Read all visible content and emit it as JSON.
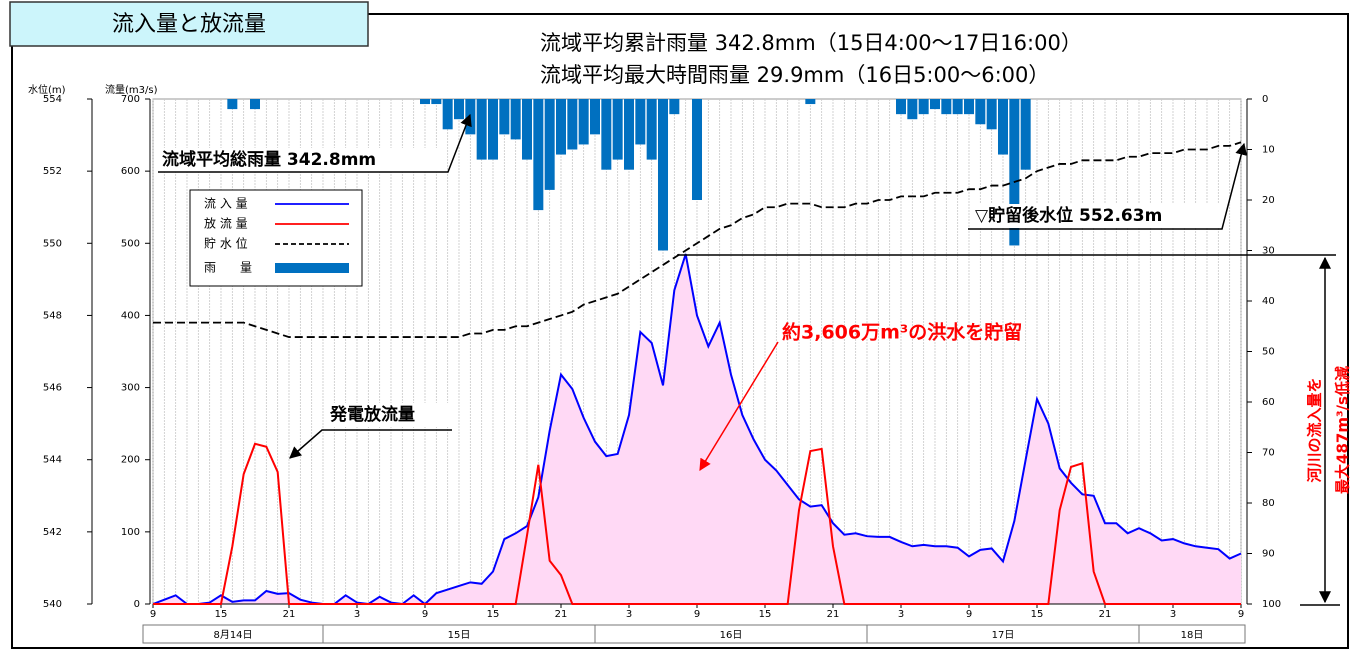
{
  "chart_data": {
    "type": "combo",
    "title": "流入量と放流量",
    "subtitle_lines": [
      "流域平均累計雨量  342.8mm（15日4:00〜17日16:00）",
      "流域平均最大時間雨量  29.9mm（16日5:00〜6:00）"
    ],
    "level_axis_label": "水位(m)",
    "y_axis_label": "流量(m3/s)",
    "annotations": [
      "流域平均総雨量  342.8mm",
      "▽貯留後水位  552.63m",
      "発電放流量",
      "約3,606万m³の洪水を貯留",
      "河川の流入量を",
      "最大487m³/s低減"
    ],
    "x": [
      0,
      1,
      2,
      3,
      4,
      5,
      6,
      7,
      8,
      9,
      10,
      11,
      12,
      13,
      14,
      15,
      16,
      17,
      18,
      19,
      20,
      21,
      22,
      23,
      24,
      25,
      26,
      27,
      28,
      29,
      30,
      31,
      32,
      33,
      34,
      35,
      36,
      37,
      38,
      39,
      40,
      41,
      42,
      43,
      44,
      45,
      46,
      47,
      48,
      49,
      50,
      51,
      52,
      53,
      54,
      55,
      56,
      57,
      58,
      59,
      60,
      61,
      62,
      63,
      64,
      65,
      66,
      67,
      68,
      69,
      70,
      71,
      72,
      73,
      74,
      75,
      76,
      77,
      78,
      79,
      80,
      81,
      82,
      83,
      84,
      85,
      86,
      87,
      88,
      89,
      90,
      91,
      92,
      93,
      94,
      95,
      96
    ],
    "xlim": [
      0,
      96
    ],
    "xticks": [
      {
        "value": 0,
        "label": "9"
      },
      {
        "value": 6,
        "label": "15"
      },
      {
        "value": 12,
        "label": "21"
      },
      {
        "value": 18,
        "label": "3"
      },
      {
        "value": 24,
        "label": "9"
      },
      {
        "value": 30,
        "label": "15"
      },
      {
        "value": 36,
        "label": "21"
      },
      {
        "value": 42,
        "label": "3"
      },
      {
        "value": 48,
        "label": "9"
      },
      {
        "value": 54,
        "label": "15"
      },
      {
        "value": 60,
        "label": "21"
      },
      {
        "value": 66,
        "label": "3"
      },
      {
        "value": 72,
        "label": "9"
      },
      {
        "value": 78,
        "label": "15"
      },
      {
        "value": 84,
        "label": "21"
      },
      {
        "value": 90,
        "label": "3"
      },
      {
        "value": 96,
        "label": "9"
      }
    ],
    "date_labels": [
      "8月14日",
      "15日",
      "16日",
      "17日",
      "18日"
    ],
    "date_dividers": [
      15,
      39,
      63,
      87
    ],
    "ylim": [
      0,
      700
    ],
    "yticks": [
      0,
      100,
      200,
      300,
      400,
      500,
      600,
      700
    ],
    "level_lim": [
      540,
      554
    ],
    "level_ticks": [
      540,
      542,
      544,
      546,
      548,
      550,
      552,
      554
    ],
    "y2lim": [
      0,
      100
    ],
    "y2ticks": [
      0,
      10,
      20,
      30,
      40,
      50,
      60,
      70,
      80,
      90,
      100
    ],
    "y2_inverted": true,
    "series": [
      {
        "name": "流 入 量",
        "color": "#0000ff",
        "fill": "#ffd9f5",
        "kind": "line",
        "axis": "y",
        "values": [
          0,
          6,
          12,
          0,
          0,
          2,
          12,
          3,
          5,
          5,
          18,
          14,
          15,
          6,
          2,
          0,
          0,
          12,
          2,
          0,
          10,
          2,
          0,
          12,
          0,
          15,
          20,
          25,
          30,
          28,
          45,
          90,
          98,
          108,
          148,
          240,
          318,
          298,
          258,
          225,
          205,
          208,
          262,
          377,
          362,
          303,
          435,
          485,
          400,
          357,
          390,
          318,
          262,
          228,
          200,
          185,
          165,
          145,
          135,
          137,
          112,
          96,
          98,
          94,
          93,
          93,
          86,
          80,
          82,
          80,
          80,
          78,
          66,
          75,
          77,
          59,
          115,
          200,
          284,
          250,
          188,
          168,
          152,
          150,
          112,
          112,
          98,
          105,
          98,
          88,
          90,
          84,
          80,
          78,
          76,
          63,
          70
        ]
      },
      {
        "name": "放 流 量",
        "color": "#ff0000",
        "kind": "line",
        "axis": "y",
        "values": [
          0,
          0,
          0,
          0,
          0,
          0,
          0,
          80,
          180,
          222,
          218,
          183,
          0,
          0,
          0,
          0,
          0,
          0,
          0,
          0,
          0,
          0,
          0,
          0,
          0,
          0,
          0,
          0,
          0,
          0,
          0,
          0,
          0,
          95,
          193,
          60,
          40,
          0,
          0,
          0,
          0,
          0,
          0,
          0,
          0,
          0,
          0,
          0,
          0,
          0,
          0,
          0,
          0,
          0,
          0,
          0,
          0,
          130,
          212,
          215,
          80,
          0,
          0,
          0,
          0,
          0,
          0,
          0,
          0,
          0,
          0,
          0,
          0,
          0,
          0,
          0,
          0,
          0,
          0,
          0,
          130,
          190,
          195,
          45,
          0,
          0,
          0,
          0,
          0,
          0,
          0,
          0,
          0,
          0,
          0,
          0,
          0
        ]
      },
      {
        "name": "貯 水 位",
        "color": "#000000",
        "kind": "dashed",
        "axis": "level",
        "values": [
          547.8,
          547.8,
          547.8,
          547.8,
          547.8,
          547.8,
          547.8,
          547.8,
          547.8,
          547.7,
          547.6,
          547.5,
          547.4,
          547.4,
          547.4,
          547.4,
          547.4,
          547.4,
          547.4,
          547.4,
          547.4,
          547.4,
          547.4,
          547.4,
          547.4,
          547.4,
          547.4,
          547.4,
          547.5,
          547.5,
          547.6,
          547.6,
          547.7,
          547.7,
          547.8,
          547.9,
          548.0,
          548.1,
          548.3,
          548.4,
          548.5,
          548.6,
          548.8,
          549.0,
          549.2,
          549.4,
          549.6,
          549.8,
          550.0,
          550.2,
          550.4,
          550.5,
          550.7,
          550.8,
          551.0,
          551.0,
          551.1,
          551.1,
          551.1,
          551.0,
          551.0,
          551.0,
          551.1,
          551.1,
          551.2,
          551.2,
          551.3,
          551.3,
          551.3,
          551.4,
          551.4,
          551.4,
          551.5,
          551.5,
          551.6,
          551.6,
          551.7,
          551.8,
          552.0,
          552.1,
          552.2,
          552.2,
          552.3,
          552.3,
          552.3,
          552.3,
          552.4,
          552.4,
          552.5,
          552.5,
          552.5,
          552.6,
          552.6,
          552.6,
          552.7,
          552.7,
          552.8
        ]
      },
      {
        "name": "雨　　量",
        "color": "#0070c0",
        "kind": "bar",
        "axis": "y2",
        "values": [
          0,
          0,
          0,
          0,
          0,
          0,
          0,
          2,
          0,
          2,
          0,
          0,
          0,
          0,
          0,
          0,
          0,
          0,
          0,
          0,
          0,
          0,
          0,
          0,
          1,
          1,
          6,
          4,
          7,
          12,
          12,
          7,
          8,
          12,
          22,
          18,
          11,
          10,
          9,
          7,
          14,
          12,
          14,
          9,
          12,
          30,
          3,
          0,
          20,
          0,
          0,
          0,
          0,
          0,
          0,
          0,
          0,
          0,
          1,
          0,
          0,
          0,
          0,
          0,
          0,
          0,
          3,
          4,
          3,
          2,
          3,
          3,
          3,
          5,
          6,
          11,
          29,
          14,
          0,
          0,
          0,
          0,
          0,
          0,
          0,
          0,
          0,
          0,
          0,
          0,
          0,
          0,
          0,
          0,
          0,
          0,
          0
        ]
      }
    ]
  }
}
